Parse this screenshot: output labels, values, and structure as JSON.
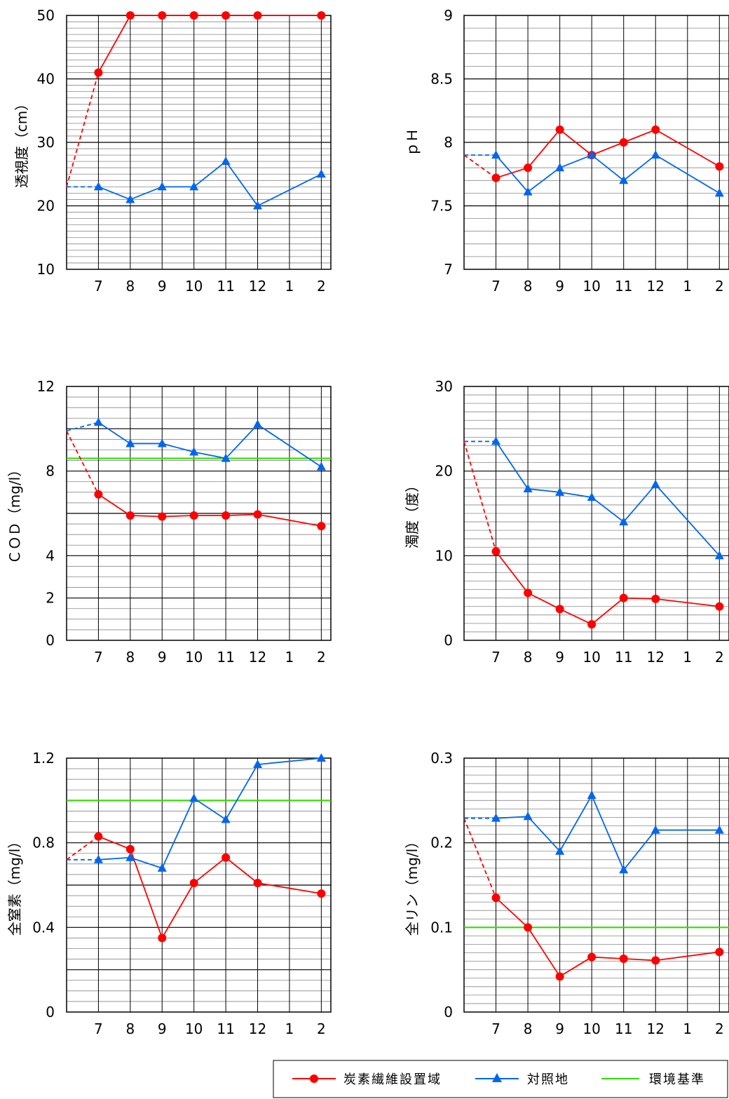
{
  "colors": {
    "series1": "#ff0000",
    "series2": "#0066ee",
    "standard": "#33dd00"
  },
  "legend": {
    "series1": "炭素繊維設置域",
    "series2": "対照地",
    "standard": "環境基準"
  },
  "chart_data": [
    {
      "id": "transparency",
      "type": "line",
      "ylabel": "透視度（cm）",
      "ylim": [
        10,
        50
      ],
      "yticks": [
        "10",
        "20",
        "30",
        "40",
        "50"
      ],
      "ytick_values": [
        10,
        20,
        30,
        40,
        50
      ],
      "minor_step": 1,
      "major_step": 10,
      "categories": [
        "7",
        "8",
        "9",
        "10",
        "11",
        "12",
        "1",
        "2"
      ],
      "start_value": 23,
      "series": [
        {
          "name": "炭素繊維設置域",
          "values": [
            41,
            50,
            50,
            50,
            50,
            50,
            null,
            50
          ]
        },
        {
          "name": "対照地",
          "values": [
            23,
            21,
            23,
            23,
            27,
            20,
            null,
            25
          ]
        }
      ],
      "standard": null
    },
    {
      "id": "ph",
      "type": "line",
      "ylabel": "ｐＨ",
      "ylim": [
        7,
        9
      ],
      "yticks": [
        "7",
        "7.5",
        "8",
        "8.5",
        "9"
      ],
      "ytick_values": [
        7,
        7.5,
        8,
        8.5,
        9
      ],
      "minor_step": 0.1,
      "major_step": 0.5,
      "categories": [
        "7",
        "8",
        "9",
        "10",
        "11",
        "12",
        "1",
        "2"
      ],
      "start_value": 7.9,
      "series": [
        {
          "name": "炭素繊維設置域",
          "values": [
            7.72,
            7.8,
            8.1,
            7.9,
            8.0,
            8.1,
            null,
            7.81
          ]
        },
        {
          "name": "対照地",
          "values": [
            7.9,
            7.61,
            7.8,
            7.9,
            7.7,
            7.9,
            null,
            7.6
          ]
        }
      ],
      "standard": null
    },
    {
      "id": "cod",
      "type": "line",
      "ylabel": "ＣＯＤ（mg/l）",
      "ylim": [
        0,
        12
      ],
      "yticks": [
        "0",
        "2",
        "4",
        "8",
        "12"
      ],
      "ytick_values": [
        0,
        2,
        4,
        8,
        12
      ],
      "minor_step": 0.5,
      "major_step": 2,
      "categories": [
        "7",
        "8",
        "9",
        "10",
        "11",
        "12",
        "1",
        "2"
      ],
      "start_value": 9.9,
      "series": [
        {
          "name": "炭素繊維設置域",
          "values": [
            6.9,
            5.9,
            5.85,
            5.9,
            5.9,
            5.95,
            null,
            5.4
          ]
        },
        {
          "name": "対照地",
          "values": [
            10.3,
            9.3,
            9.3,
            8.9,
            8.6,
            10.2,
            null,
            8.2
          ]
        }
      ],
      "standard": 8.6
    },
    {
      "id": "turbidity",
      "type": "line",
      "ylabel": "濁度（度）",
      "ylim": [
        0,
        30
      ],
      "yticks": [
        "0",
        "10",
        "20",
        "30"
      ],
      "ytick_values": [
        0,
        10,
        20,
        30
      ],
      "minor_step": 1,
      "major_step": 10,
      "categories": [
        "7",
        "8",
        "9",
        "10",
        "11",
        "12",
        "1",
        "2"
      ],
      "start_value": 23.5,
      "series": [
        {
          "name": "炭素繊維設置域",
          "values": [
            10.5,
            5.6,
            3.7,
            1.9,
            5.0,
            4.9,
            null,
            4.0
          ]
        },
        {
          "name": "対照地",
          "values": [
            23.5,
            17.9,
            17.5,
            16.9,
            14.0,
            18.4,
            null,
            10.0
          ]
        }
      ],
      "standard": null
    },
    {
      "id": "total-nitrogen",
      "type": "line",
      "ylabel": "全窒素（mg/l）",
      "ylim": [
        0,
        1.2
      ],
      "yticks": [
        "0",
        "0.4",
        "0.8",
        "1.2"
      ],
      "ytick_values": [
        0,
        0.4,
        0.8,
        1.2
      ],
      "minor_step": 0.05,
      "major_step": 0.2,
      "categories": [
        "7",
        "8",
        "9",
        "10",
        "11",
        "12",
        "1",
        "2"
      ],
      "start_value": 0.72,
      "series": [
        {
          "name": "炭素繊維設置域",
          "values": [
            0.83,
            0.77,
            0.35,
            0.61,
            0.73,
            0.61,
            null,
            0.56
          ]
        },
        {
          "name": "対照地",
          "values": [
            0.72,
            0.73,
            0.68,
            1.01,
            0.91,
            1.17,
            null,
            1.2
          ]
        }
      ],
      "standard": 1.0
    },
    {
      "id": "total-phosphorus",
      "type": "line",
      "ylabel": "全リン（mg/l）",
      "ylim": [
        0,
        0.3
      ],
      "yticks": [
        "0",
        "0.1",
        "0.2",
        "0.3"
      ],
      "ytick_values": [
        0,
        0.1,
        0.2,
        0.3
      ],
      "minor_step": 0.01,
      "major_step": 0.1,
      "categories": [
        "7",
        "8",
        "9",
        "10",
        "11",
        "12",
        "1",
        "2"
      ],
      "start_value": 0.229,
      "series": [
        {
          "name": "炭素繊維設置域",
          "values": [
            0.135,
            0.1,
            0.042,
            0.065,
            0.063,
            0.061,
            null,
            0.071
          ]
        },
        {
          "name": "対照地",
          "values": [
            0.229,
            0.231,
            0.19,
            0.256,
            0.168,
            0.215,
            null,
            0.215
          ]
        }
      ],
      "standard": 0.1
    }
  ]
}
